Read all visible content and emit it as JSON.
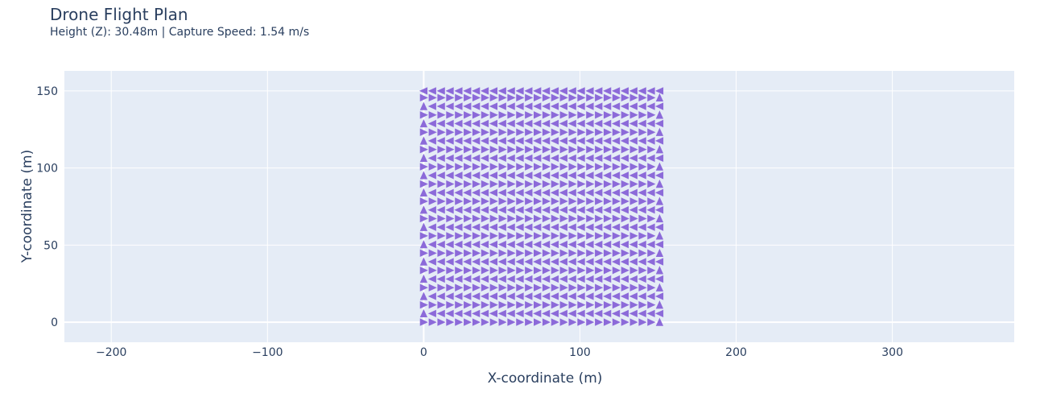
{
  "chart_data": {
    "type": "scatter",
    "title": "Drone Flight Plan",
    "subtitle": "Height (Z): 30.48m | Capture Speed: 1.54 m/s",
    "xlabel": "X-coordinate (m)",
    "ylabel": "Y-coordinate (m)",
    "xlim": [
      -230,
      378
    ],
    "ylim": [
      -13,
      163
    ],
    "xticks": [
      -200,
      -100,
      0,
      100,
      200,
      300
    ],
    "xtick_labels": [
      "−200",
      "−100",
      "0",
      "100",
      "200",
      "300"
    ],
    "yticks": [
      0,
      50,
      100,
      150
    ],
    "ytick_labels": [
      "0",
      "50",
      "100",
      "150"
    ],
    "grid": true,
    "marker": "triangle",
    "marker_color": "#8c6ad9",
    "flight_pattern": "lawnmower",
    "x_positions": [
      0,
      5.6,
      11.2,
      16.8,
      22.4,
      28,
      33.6,
      39.2,
      44.8,
      50.4,
      56,
      61.6,
      67.2,
      72.8,
      78.4,
      84,
      89.6,
      95.2,
      100.8,
      106.4,
      112,
      117.6,
      123.2,
      128.8,
      134.4,
      140,
      145.6,
      151
    ],
    "y_rows": [
      0,
      5.6,
      11.2,
      16.8,
      22.4,
      28,
      33.6,
      39.2,
      44.8,
      50.4,
      56,
      61.6,
      67.2,
      72.8,
      78.4,
      84,
      89.6,
      95.2,
      100.8,
      106.4,
      112,
      117.6,
      123.2,
      128.8,
      134.4,
      140,
      145.6,
      150
    ],
    "first_row_direction": "right",
    "plot_bgcolor": "#e5ecf6",
    "grid_color": "#ffffff"
  }
}
